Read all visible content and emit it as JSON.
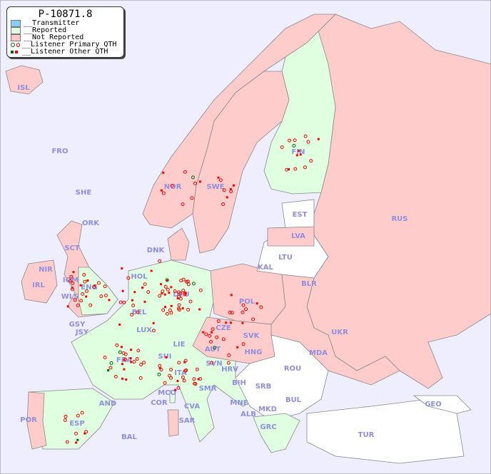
{
  "legend": {
    "title": "P-10871.8",
    "items": [
      {
        "label": "__Transmitter",
        "color": "#87cefa"
      },
      {
        "label": "__Reported",
        "color": "#e0ffe0"
      },
      {
        "label": "__Not Reported",
        "color": "#ffc8c8"
      },
      {
        "label": "__Listener Primary QTH",
        "colors": [
          "#006400",
          "#ff0000"
        ]
      },
      {
        "label": "__Listener Other QTH",
        "colors": [
          "#006400",
          "#ff0000"
        ]
      }
    ]
  },
  "colors": {
    "sea": "#eeeeff",
    "reported": "#e0ffe0",
    "not_reported": "#ffcccc",
    "no_data": "#ffffff",
    "border": "#888888",
    "listener": "#ff0000",
    "listener_alt": "#006400"
  },
  "countries": [
    {
      "code": "ISL",
      "status": "not_reported"
    },
    {
      "code": "FRO",
      "status": "not_reported"
    },
    {
      "code": "SHE",
      "status": "not_reported"
    },
    {
      "code": "ORK",
      "status": "not_reported"
    },
    {
      "code": "NOR",
      "status": "not_reported"
    },
    {
      "code": "SWE",
      "status": "not_reported"
    },
    {
      "code": "FIN",
      "status": "reported"
    },
    {
      "code": "RUS",
      "status": "not_reported"
    },
    {
      "code": "EST",
      "status": "no_data"
    },
    {
      "code": "LVA",
      "status": "not_reported"
    },
    {
      "code": "LTU",
      "status": "no_data"
    },
    {
      "code": "KAL",
      "status": "no_data"
    },
    {
      "code": "BLR",
      "status": "no_data"
    },
    {
      "code": "DNK",
      "status": "not_reported"
    },
    {
      "code": "HOL",
      "status": "reported"
    },
    {
      "code": "DEU",
      "status": "reported"
    },
    {
      "code": "POL",
      "status": "not_reported"
    },
    {
      "code": "BEL",
      "status": "reported"
    },
    {
      "code": "LUX",
      "status": "reported"
    },
    {
      "code": "CZE",
      "status": "not_reported"
    },
    {
      "code": "SVK",
      "status": "not_reported"
    },
    {
      "code": "UKR",
      "status": "not_reported"
    },
    {
      "code": "GSY",
      "status": "not_reported"
    },
    {
      "code": "JSY",
      "status": "not_reported"
    },
    {
      "code": "IRL",
      "status": "not_reported"
    },
    {
      "code": "WLS",
      "status": "not_reported"
    },
    {
      "code": "IOM",
      "status": "not_reported"
    },
    {
      "code": "ENG",
      "status": "reported"
    },
    {
      "code": "SCT",
      "status": "not_reported"
    },
    {
      "code": "NIR",
      "status": "not_reported"
    },
    {
      "code": "FRA",
      "status": "reported"
    },
    {
      "code": "SUI",
      "status": "reported"
    },
    {
      "code": "LIE",
      "status": "reported"
    },
    {
      "code": "AUT",
      "status": "not_reported"
    },
    {
      "code": "HNG",
      "status": "not_reported"
    },
    {
      "code": "MDA",
      "status": "no_data"
    },
    {
      "code": "ROU",
      "status": "no_data"
    },
    {
      "code": "SVN",
      "status": "reported"
    },
    {
      "code": "HRV",
      "status": "reported"
    },
    {
      "code": "ITA",
      "status": "reported"
    },
    {
      "code": "BIH",
      "status": "not_reported"
    },
    {
      "code": "SRB",
      "status": "no_data"
    },
    {
      "code": "MCO",
      "status": "reported"
    },
    {
      "code": "SMR",
      "status": "reported"
    },
    {
      "code": "CVA",
      "status": "reported"
    },
    {
      "code": "COR",
      "status": "reported"
    },
    {
      "code": "AND",
      "status": "reported"
    },
    {
      "code": "BUL",
      "status": "no_data"
    },
    {
      "code": "GEO",
      "status": "no_data"
    },
    {
      "code": "MNE",
      "status": "not_reported"
    },
    {
      "code": "MKD",
      "status": "no_data"
    },
    {
      "code": "ALB",
      "status": "not_reported"
    },
    {
      "code": "POR",
      "status": "not_reported"
    },
    {
      "code": "ESP",
      "status": "reported"
    },
    {
      "code": "SAR",
      "status": "not_reported"
    },
    {
      "code": "GRC",
      "status": "reported"
    },
    {
      "code": "TUR",
      "status": "no_data"
    },
    {
      "code": "BAL",
      "status": "not_reported"
    }
  ]
}
